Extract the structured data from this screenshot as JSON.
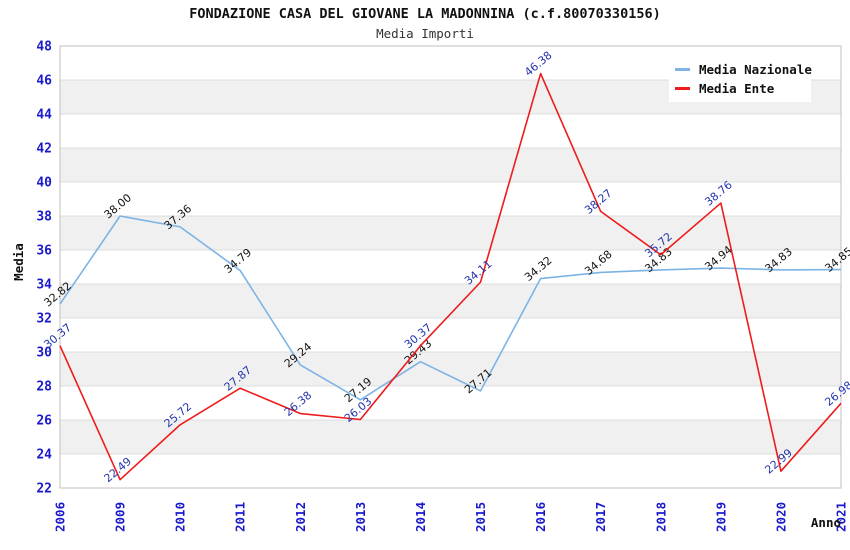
{
  "header": {
    "title": "FONDAZIONE CASA DEL GIOVANE LA MADONNINA (c.f.80070330156)",
    "subtitle": "Media Importi"
  },
  "legend": {
    "items": [
      {
        "label": "Media Nazionale",
        "color": "#7db3e5"
      },
      {
        "label": "Media Ente",
        "color": "#ee1c1c"
      }
    ]
  },
  "chart_data": {
    "type": "line",
    "title": "FONDAZIONE CASA DEL GIOVANE LA MADONNINA (c.f.80070330156)",
    "subtitle": "Media Importi",
    "x": [
      2006,
      2009,
      2010,
      2011,
      2012,
      2013,
      2014,
      2015,
      2016,
      2017,
      2018,
      2019,
      2020,
      2021
    ],
    "series": [
      {
        "name": "Media Nazionale",
        "color": "#7db3e5",
        "label_color": "#111111",
        "values": [
          32.82,
          38.0,
          37.36,
          34.79,
          29.24,
          27.19,
          29.43,
          27.71,
          34.32,
          34.68,
          34.83,
          34.94,
          34.83,
          34.85
        ]
      },
      {
        "name": "Media Ente",
        "color": "#ee1c1c",
        "label_color": "#2233aa",
        "values": [
          30.37,
          22.49,
          25.72,
          27.87,
          26.38,
          26.03,
          30.37,
          34.11,
          46.38,
          38.27,
          35.72,
          38.76,
          22.99,
          26.98
        ]
      }
    ],
    "xlabel": "Anno",
    "ylabel": "Media",
    "ylim": [
      22,
      48
    ],
    "ytick_step": 2,
    "grid": "horizontal-bands-alternating",
    "legend_position": "top-right",
    "colors": {
      "axis_text": "#1a1acc",
      "band_gray": "#f0f0f0",
      "grid_line": "#dcdcdc",
      "plot_border": "#c0c0c0"
    }
  }
}
